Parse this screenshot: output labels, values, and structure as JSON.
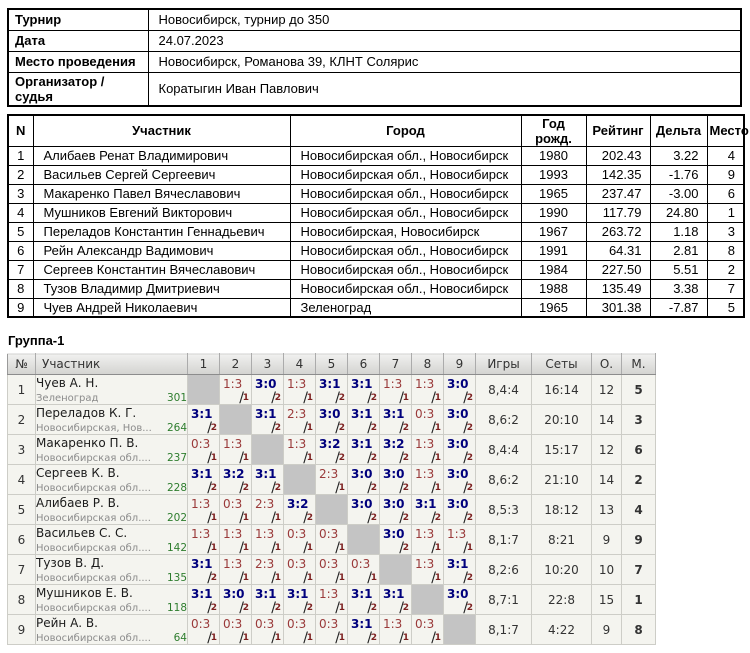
{
  "colors": {
    "win": "#00007d",
    "loss": "#9a3a3a",
    "points": "#7c1f1f",
    "rating_green": "#2e7d2e",
    "place_navy": "#16168c"
  },
  "info": {
    "rows": [
      {
        "label": "Турнир",
        "value": "Новосибирск, турнир до 350"
      },
      {
        "label": "Дата",
        "value": "24.07.2023"
      },
      {
        "label": "Место проведения",
        "value": "Новосибирск, Романова 39, КЛНТ Солярис"
      },
      {
        "label": "Организатор / судья",
        "value": "Коратыгин Иван Павлович"
      }
    ]
  },
  "players": {
    "columns": [
      "N",
      "Участник",
      "Город",
      "Год рожд.",
      "Рейтинг",
      "Дельта",
      "Место"
    ],
    "rows": [
      {
        "n": "1",
        "name": "Алибаев Ренат Владимирович",
        "city": "Новосибирская обл., Новосибирск",
        "born": "1980",
        "rating": "202.43",
        "delta": "3.22",
        "place": "4"
      },
      {
        "n": "2",
        "name": "Васильев Сергей Сергеевич",
        "city": "Новосибирская обл., Новосибирск",
        "born": "1993",
        "rating": "142.35",
        "delta": "-1.76",
        "place": "9"
      },
      {
        "n": "3",
        "name": "Макаренко Павел Вячеславович",
        "city": "Новосибирская обл., Новосибирск",
        "born": "1965",
        "rating": "237.47",
        "delta": "-3.00",
        "place": "6"
      },
      {
        "n": "4",
        "name": "Мушников Евгений Викторович",
        "city": "Новосибирская обл., Новосибирск",
        "born": "1990",
        "rating": "117.79",
        "delta": "24.80",
        "place": "1"
      },
      {
        "n": "5",
        "name": "Переладов Константин Геннадьевич",
        "city": "Новосибирская, Новосибирск",
        "born": "1967",
        "rating": "263.72",
        "delta": "1.18",
        "place": "3"
      },
      {
        "n": "6",
        "name": "Рейн Александр Вадимович",
        "city": "Новосибирская обл., Новосибирск",
        "born": "1991",
        "rating": "64.31",
        "delta": "2.81",
        "place": "8"
      },
      {
        "n": "7",
        "name": "Сергеев Константин Вячеславович",
        "city": "Новосибирская обл., Новосибирск",
        "born": "1984",
        "rating": "227.50",
        "delta": "5.51",
        "place": "2"
      },
      {
        "n": "8",
        "name": "Тузов Владимир Дмитриевич",
        "city": "Новосибирская обл., Новосибирск",
        "born": "1988",
        "rating": "135.49",
        "delta": "3.38",
        "place": "7"
      },
      {
        "n": "9",
        "name": "Чуев Андрей Николаевич",
        "city": "Зеленоград",
        "born": "1965",
        "rating": "301.38",
        "delta": "-7.87",
        "place": "5"
      }
    ]
  },
  "group": {
    "title": "Группа-1",
    "columns": [
      "№",
      "Участник",
      "1",
      "2",
      "3",
      "4",
      "5",
      "6",
      "7",
      "8",
      "9",
      "Игры",
      "Сеты",
      "О.",
      "М."
    ],
    "rows": [
      {
        "n": "1",
        "name": "Чуев А. Н.",
        "city": "Зеленоград",
        "rating": "301",
        "results": [
          null,
          {
            "score": "1:3",
            "pts": "1",
            "win": false
          },
          {
            "score": "3:0",
            "pts": "2",
            "win": true
          },
          {
            "score": "1:3",
            "pts": "1",
            "win": false
          },
          {
            "score": "3:1",
            "pts": "2",
            "win": true
          },
          {
            "score": "3:1",
            "pts": "2",
            "win": true
          },
          {
            "score": "1:3",
            "pts": "1",
            "win": false
          },
          {
            "score": "1:3",
            "pts": "1",
            "win": false
          },
          {
            "score": "3:0",
            "pts": "2",
            "win": true
          }
        ],
        "games": "8,4:4",
        "sets": "16:14",
        "points": "12",
        "place": "5"
      },
      {
        "n": "2",
        "name": "Переладов К. Г.",
        "city": "Новосибирская, Нов...",
        "rating": "264",
        "results": [
          {
            "score": "3:1",
            "pts": "2",
            "win": true
          },
          null,
          {
            "score": "3:1",
            "pts": "2",
            "win": true
          },
          {
            "score": "2:3",
            "pts": "1",
            "win": false
          },
          {
            "score": "3:0",
            "pts": "2",
            "win": true
          },
          {
            "score": "3:1",
            "pts": "2",
            "win": true
          },
          {
            "score": "3:1",
            "pts": "2",
            "win": true
          },
          {
            "score": "0:3",
            "pts": "1",
            "win": false
          },
          {
            "score": "3:0",
            "pts": "2",
            "win": true
          }
        ],
        "games": "8,6:2",
        "sets": "20:10",
        "points": "14",
        "place": "3"
      },
      {
        "n": "3",
        "name": "Макаренко П. В.",
        "city": "Новосибирская обл....",
        "rating": "237",
        "results": [
          {
            "score": "0:3",
            "pts": "1",
            "win": false
          },
          {
            "score": "1:3",
            "pts": "1",
            "win": false
          },
          null,
          {
            "score": "1:3",
            "pts": "1",
            "win": false
          },
          {
            "score": "3:2",
            "pts": "2",
            "win": true
          },
          {
            "score": "3:1",
            "pts": "2",
            "win": true
          },
          {
            "score": "3:2",
            "pts": "2",
            "win": true
          },
          {
            "score": "1:3",
            "pts": "1",
            "win": false
          },
          {
            "score": "3:0",
            "pts": "2",
            "win": true
          }
        ],
        "games": "8,4:4",
        "sets": "15:17",
        "points": "12",
        "place": "6"
      },
      {
        "n": "4",
        "name": "Сергеев К. В.",
        "city": "Новосибирская обл....",
        "rating": "228",
        "results": [
          {
            "score": "3:1",
            "pts": "2",
            "win": true
          },
          {
            "score": "3:2",
            "pts": "2",
            "win": true
          },
          {
            "score": "3:1",
            "pts": "2",
            "win": true
          },
          null,
          {
            "score": "2:3",
            "pts": "1",
            "win": false
          },
          {
            "score": "3:0",
            "pts": "2",
            "win": true
          },
          {
            "score": "3:0",
            "pts": "2",
            "win": true
          },
          {
            "score": "1:3",
            "pts": "1",
            "win": false
          },
          {
            "score": "3:0",
            "pts": "2",
            "win": true
          }
        ],
        "games": "8,6:2",
        "sets": "21:10",
        "points": "14",
        "place": "2"
      },
      {
        "n": "5",
        "name": "Алибаев Р. В.",
        "city": "Новосибирская обл....",
        "rating": "202",
        "results": [
          {
            "score": "1:3",
            "pts": "1",
            "win": false
          },
          {
            "score": "0:3",
            "pts": "1",
            "win": false
          },
          {
            "score": "2:3",
            "pts": "1",
            "win": false
          },
          {
            "score": "3:2",
            "pts": "2",
            "win": true
          },
          null,
          {
            "score": "3:0",
            "pts": "2",
            "win": true
          },
          {
            "score": "3:0",
            "pts": "2",
            "win": true
          },
          {
            "score": "3:1",
            "pts": "2",
            "win": true
          },
          {
            "score": "3:0",
            "pts": "2",
            "win": true
          }
        ],
        "games": "8,5:3",
        "sets": "18:12",
        "points": "13",
        "place": "4"
      },
      {
        "n": "6",
        "name": "Васильев С. С.",
        "city": "Новосибирская обл....",
        "rating": "142",
        "results": [
          {
            "score": "1:3",
            "pts": "1",
            "win": false
          },
          {
            "score": "1:3",
            "pts": "1",
            "win": false
          },
          {
            "score": "1:3",
            "pts": "1",
            "win": false
          },
          {
            "score": "0:3",
            "pts": "1",
            "win": false
          },
          {
            "score": "0:3",
            "pts": "1",
            "win": false
          },
          null,
          {
            "score": "3:0",
            "pts": "2",
            "win": true
          },
          {
            "score": "1:3",
            "pts": "1",
            "win": false
          },
          {
            "score": "1:3",
            "pts": "1",
            "win": false
          }
        ],
        "games": "8,1:7",
        "sets": "8:21",
        "points": "9",
        "place": "9"
      },
      {
        "n": "7",
        "name": "Тузов В. Д.",
        "city": "Новосибирская обл....",
        "rating": "135",
        "results": [
          {
            "score": "3:1",
            "pts": "2",
            "win": true
          },
          {
            "score": "1:3",
            "pts": "1",
            "win": false
          },
          {
            "score": "2:3",
            "pts": "1",
            "win": false
          },
          {
            "score": "0:3",
            "pts": "1",
            "win": false
          },
          {
            "score": "0:3",
            "pts": "1",
            "win": false
          },
          {
            "score": "0:3",
            "pts": "1",
            "win": false
          },
          null,
          {
            "score": "1:3",
            "pts": "1",
            "win": false
          },
          {
            "score": "3:1",
            "pts": "2",
            "win": true
          }
        ],
        "games": "8,2:6",
        "sets": "10:20",
        "points": "10",
        "place": "7"
      },
      {
        "n": "8",
        "name": "Мушников Е. В.",
        "city": "Новосибирская обл....",
        "rating": "118",
        "results": [
          {
            "score": "3:1",
            "pts": "2",
            "win": true
          },
          {
            "score": "3:0",
            "pts": "2",
            "win": true
          },
          {
            "score": "3:1",
            "pts": "2",
            "win": true
          },
          {
            "score": "3:1",
            "pts": "2",
            "win": true
          },
          {
            "score": "1:3",
            "pts": "1",
            "win": false
          },
          {
            "score": "3:1",
            "pts": "2",
            "win": true
          },
          {
            "score": "3:1",
            "pts": "2",
            "win": true
          },
          null,
          {
            "score": "3:0",
            "pts": "2",
            "win": true
          }
        ],
        "games": "8,7:1",
        "sets": "22:8",
        "points": "15",
        "place": "1"
      },
      {
        "n": "9",
        "name": "Рейн А. В.",
        "city": "Новосибирская обл....",
        "rating": "64",
        "results": [
          {
            "score": "0:3",
            "pts": "1",
            "win": false
          },
          {
            "score": "0:3",
            "pts": "1",
            "win": false
          },
          {
            "score": "0:3",
            "pts": "1",
            "win": false
          },
          {
            "score": "0:3",
            "pts": "1",
            "win": false
          },
          {
            "score": "0:3",
            "pts": "1",
            "win": false
          },
          {
            "score": "3:1",
            "pts": "2",
            "win": true
          },
          {
            "score": "1:3",
            "pts": "1",
            "win": false
          },
          {
            "score": "0:3",
            "pts": "1",
            "win": false
          },
          null
        ],
        "games": "8,1:7",
        "sets": "4:22",
        "points": "9",
        "place": "8"
      }
    ]
  }
}
